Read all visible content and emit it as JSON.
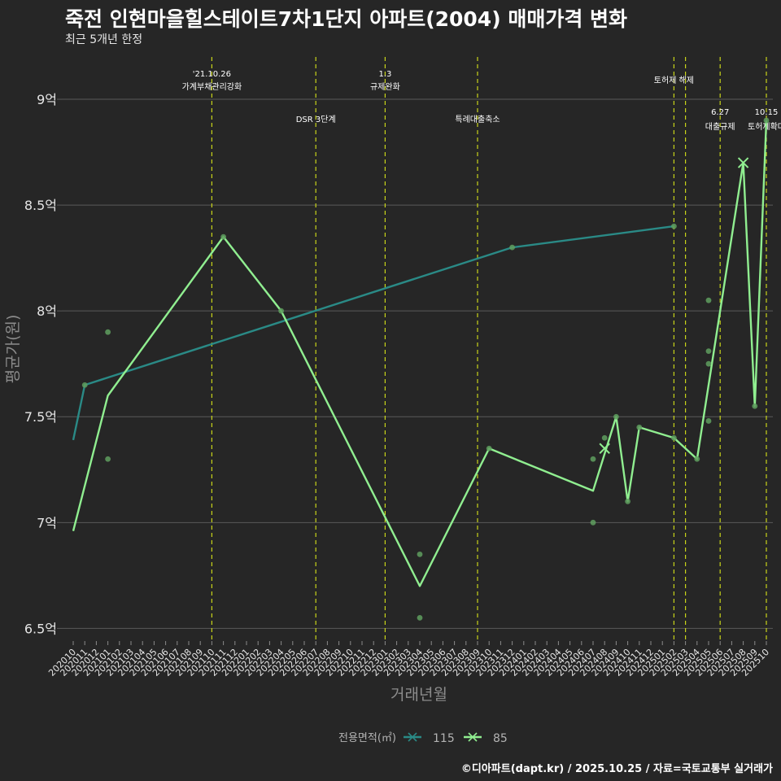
{
  "page": {
    "title": "죽전 인현마을힐스테이트7차1단지 아파트(2004) 매매가격 변화",
    "subtitle": "최근 5개년 한정",
    "caption": "©디아파트(dapt.kr) / 2025.10.25 / 자료=국토교통부 실거래가"
  },
  "colors": {
    "background": "#262626",
    "grid": "#5a5a5a",
    "series_115": "#2a8a86",
    "series_85": "#90ee90",
    "point": "#5f9f5f",
    "vline": "#c8d419"
  },
  "chart_data": {
    "type": "line",
    "title": "죽전 인현마을힐스테이트7차1단지 아파트(2004) 매매가격 변화",
    "subtitle": "최근 5개년 한정",
    "xlabel": "거래년월",
    "ylabel": "평균가(원)",
    "ylim": [
      6.44,
      9.2
    ],
    "yticks": [
      {
        "value": 6.5,
        "label": "6.5억"
      },
      {
        "value": 7.0,
        "label": "7억"
      },
      {
        "value": 7.5,
        "label": "7.5억"
      },
      {
        "value": 8.0,
        "label": "8억"
      },
      {
        "value": 8.5,
        "label": "8.5억"
      },
      {
        "value": 9.0,
        "label": "9억"
      }
    ],
    "x_start": "202010",
    "x_end": "202510",
    "x_categories": [
      "202010",
      "202011",
      "202012",
      "202101",
      "202102",
      "202103",
      "202104",
      "202105",
      "202106",
      "202107",
      "202108",
      "202109",
      "202110",
      "202111",
      "202112",
      "202201",
      "202202",
      "202203",
      "202204",
      "202205",
      "202206",
      "202207",
      "202208",
      "202209",
      "202210",
      "202211",
      "202212",
      "202301",
      "202302",
      "202303",
      "202304",
      "202305",
      "202306",
      "202307",
      "202308",
      "202309",
      "202310",
      "202311",
      "202312",
      "202401",
      "202402",
      "202403",
      "202404",
      "202405",
      "202406",
      "202407",
      "202408",
      "202409",
      "202410",
      "202411",
      "202412",
      "202501",
      "202502",
      "202503",
      "202504",
      "202505",
      "202506",
      "202507",
      "202508",
      "202509",
      "202510"
    ],
    "legend": {
      "title": "전용면적(㎡)",
      "position": "bottom",
      "items": [
        {
          "name": "115",
          "color": "#2a8a86"
        },
        {
          "name": "85",
          "color": "#90ee90"
        }
      ]
    },
    "series": [
      {
        "name": "115",
        "color": "#2a8a86",
        "line": [
          [
            "202010",
            7.39
          ],
          [
            "202011",
            7.65
          ],
          [
            "202312",
            8.3
          ],
          [
            "202502",
            8.4
          ]
        ],
        "points": [
          [
            "202011",
            7.65
          ],
          [
            "202312",
            8.3
          ],
          [
            "202502",
            8.4
          ]
        ]
      },
      {
        "name": "85",
        "color": "#90ee90",
        "line": [
          [
            "202010",
            6.96
          ],
          [
            "202101",
            7.6
          ],
          [
            "202111",
            8.35
          ],
          [
            "202204",
            8.0
          ],
          [
            "202304",
            6.7
          ],
          [
            "202310",
            7.35
          ],
          [
            "202407",
            7.15
          ],
          [
            "202409",
            7.5
          ],
          [
            "202410",
            7.1
          ],
          [
            "202411",
            7.45
          ],
          [
            "202502",
            7.4
          ],
          [
            "202504",
            7.3
          ],
          [
            "202508",
            8.7
          ],
          [
            "202509",
            7.55
          ],
          [
            "202510",
            8.9
          ]
        ],
        "points": [
          [
            "202101",
            7.9
          ],
          [
            "202101",
            7.3
          ],
          [
            "202111",
            8.35
          ],
          [
            "202204",
            8.0
          ],
          [
            "202304",
            6.85
          ],
          [
            "202304",
            6.55
          ],
          [
            "202310",
            7.35
          ],
          [
            "202407",
            7.3
          ],
          [
            "202407",
            7.0
          ],
          [
            "202408",
            7.4
          ],
          [
            "202409",
            7.5
          ],
          [
            "202410",
            7.1
          ],
          [
            "202411",
            7.45
          ],
          [
            "202502",
            7.4
          ],
          [
            "202504",
            7.3
          ],
          [
            "202505",
            8.05
          ],
          [
            "202505",
            7.81
          ],
          [
            "202505",
            7.75
          ],
          [
            "202505",
            7.48
          ],
          [
            "202509",
            7.55
          ],
          [
            "202510",
            8.9
          ]
        ],
        "cross_marks": [
          [
            "202408",
            7.35
          ],
          [
            "202508",
            8.7
          ]
        ]
      }
    ],
    "events": [
      {
        "month": "202110",
        "line1": "'21.10.26",
        "line2": "가계부채관리강화",
        "row": 1
      },
      {
        "month": "202207",
        "line1": "DSR 3단계",
        "line2": "",
        "row": 2
      },
      {
        "month": "202301",
        "line1": "1.3",
        "line2": "규제완화",
        "row": 1
      },
      {
        "month": "202309",
        "line1": "특례대출축소",
        "line2": "",
        "row": 2
      },
      {
        "month": "202502",
        "line1": "토허제 해제",
        "line2": "",
        "row": 3
      },
      {
        "month": "202503",
        "line1": "",
        "line2": "",
        "row": 0
      },
      {
        "month": "202506",
        "line1": "6.27",
        "line2": "대출규제",
        "row": 4
      },
      {
        "month": "202510",
        "line1": "10.15",
        "line2": "토허제확대",
        "row": 4
      }
    ]
  }
}
